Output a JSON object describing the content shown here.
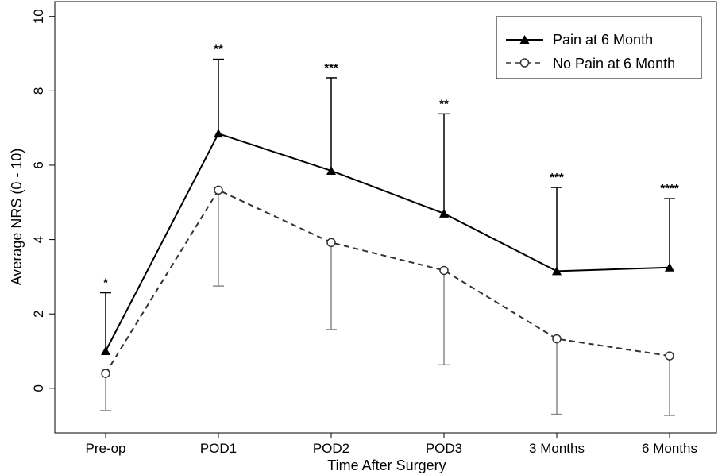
{
  "chart_data": {
    "type": "line",
    "xlabel": "Time After Surgery",
    "ylabel": "Average NRS (0 - 10)",
    "ylim": [
      -1.2,
      10.4
    ],
    "yticks": [
      0,
      2,
      4,
      6,
      8,
      10
    ],
    "categories": [
      "Pre-op",
      "POD1",
      "POD2",
      "POD3",
      "3 Months",
      "6 Months"
    ],
    "grid": false,
    "legend_position": "top-right",
    "series": [
      {
        "name": "Pain at 6 Month",
        "marker": "filled-triangle",
        "line": "solid",
        "color": "#000000",
        "values": [
          1.0,
          6.85,
          5.85,
          4.7,
          3.15,
          3.25
        ],
        "error_upper": [
          2.57,
          8.85,
          8.35,
          7.38,
          5.4,
          5.1
        ]
      },
      {
        "name": "No Pain at 6 Month",
        "marker": "open-circle",
        "line": "dashed",
        "color": "#333333",
        "errorbar_color": "#888888",
        "values": [
          0.4,
          5.33,
          3.92,
          3.17,
          1.33,
          0.87
        ],
        "error_lower": [
          -0.6,
          2.75,
          1.58,
          0.63,
          -0.7,
          -0.73
        ]
      }
    ],
    "annotations": [
      "*",
      "**",
      "***",
      "**",
      "***",
      "****"
    ]
  }
}
